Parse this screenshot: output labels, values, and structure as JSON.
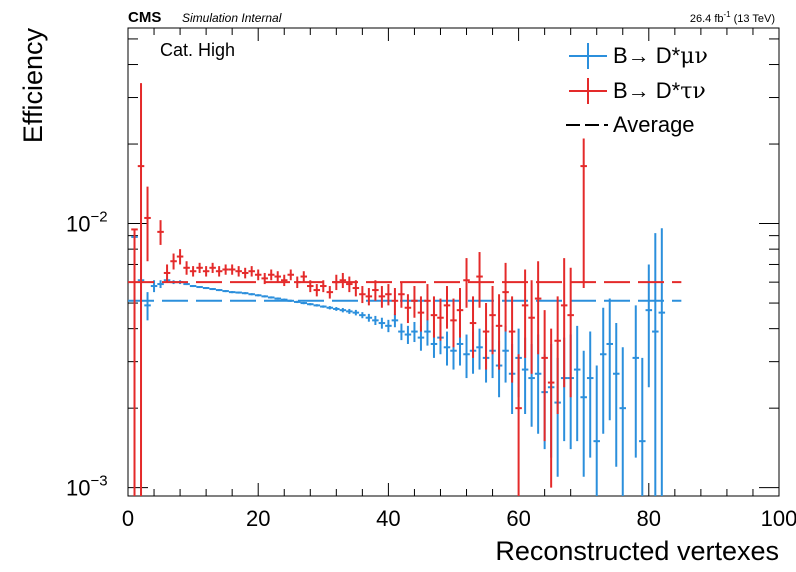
{
  "header": {
    "experiment": "CMS",
    "status": "Simulation Internal",
    "lumi_text": "26.4 fb",
    "lumi_exp": "-1",
    "energy": "(13 TeV)"
  },
  "category_label": "Cat. High",
  "legend": [
    {
      "prefix": "B→ D*",
      "particles": "μν",
      "color": "#2b8fdc"
    },
    {
      "prefix": "B→ D*",
      "particles": "τν",
      "color": "#e42a2a"
    },
    {
      "label": "Average",
      "color": "#000000"
    }
  ],
  "chart_data": {
    "type": "scatter",
    "xlabel": "Reconstructed vertexes",
    "ylabel": "Efficiency",
    "xlim": [
      0,
      100
    ],
    "ylim": [
      0.00093,
      0.055
    ],
    "log_y": true,
    "x_ticks": [
      0,
      20,
      40,
      60,
      80,
      100
    ],
    "y_tick_labels": [
      {
        "value": 0.01,
        "base": "10",
        "exp": "−2"
      },
      {
        "value": 0.001,
        "base": "10",
        "exp": "−3"
      }
    ],
    "series": [
      {
        "name": "B→ D*μν",
        "color": "#2b8fdc",
        "average": 0.0051,
        "average_range": [
          0,
          85
        ],
        "points": [
          [
            1,
            0.0089,
            0.0032,
            0.0085
          ],
          [
            2,
            0.0061,
            0.004,
            0.0075
          ],
          [
            3,
            0.0049,
            0.0043,
            0.0055
          ],
          [
            4,
            0.0058,
            0.0055,
            0.0061
          ],
          [
            5,
            0.0059,
            0.0057,
            0.0061
          ],
          [
            6,
            0.0061,
            0.006,
            0.0062
          ],
          [
            7,
            0.006,
            0.0059,
            0.0061
          ],
          [
            8,
            0.006,
            0.0059,
            0.0061
          ],
          [
            9,
            0.0059,
            0.00585,
            0.00595
          ],
          [
            10,
            0.0058,
            0.00575,
            0.00585
          ],
          [
            11,
            0.00575,
            0.0057,
            0.0058
          ],
          [
            12,
            0.0057,
            0.00565,
            0.00575
          ],
          [
            13,
            0.00565,
            0.0056,
            0.0057
          ],
          [
            14,
            0.0056,
            0.00555,
            0.00565
          ],
          [
            15,
            0.00555,
            0.0055,
            0.0056
          ],
          [
            16,
            0.0055,
            0.00545,
            0.00555
          ],
          [
            17,
            0.00548,
            0.00543,
            0.00553
          ],
          [
            18,
            0.00545,
            0.0054,
            0.0055
          ],
          [
            19,
            0.0054,
            0.00535,
            0.00545
          ],
          [
            20,
            0.00535,
            0.0053,
            0.0054
          ],
          [
            21,
            0.0053,
            0.00525,
            0.00535
          ],
          [
            22,
            0.00525,
            0.0052,
            0.0053
          ],
          [
            23,
            0.0052,
            0.00515,
            0.00525
          ],
          [
            24,
            0.00515,
            0.0051,
            0.0052
          ],
          [
            25,
            0.0051,
            0.00505,
            0.00515
          ],
          [
            26,
            0.00505,
            0.005,
            0.0051
          ],
          [
            27,
            0.005,
            0.00495,
            0.00505
          ],
          [
            28,
            0.00495,
            0.0049,
            0.005
          ],
          [
            29,
            0.0049,
            0.00485,
            0.00495
          ],
          [
            30,
            0.00485,
            0.0048,
            0.0049
          ],
          [
            31,
            0.0048,
            0.00473,
            0.00487
          ],
          [
            32,
            0.00475,
            0.00467,
            0.00483
          ],
          [
            33,
            0.0047,
            0.00461,
            0.00479
          ],
          [
            34,
            0.00465,
            0.00455,
            0.00475
          ],
          [
            35,
            0.0046,
            0.00449,
            0.00471
          ],
          [
            36,
            0.0045,
            0.00438,
            0.00462
          ],
          [
            37,
            0.0044,
            0.00425,
            0.00455
          ],
          [
            38,
            0.0043,
            0.00413,
            0.00447
          ],
          [
            39,
            0.0042,
            0.004,
            0.0044
          ],
          [
            40,
            0.0041,
            0.00388,
            0.00432
          ],
          [
            41,
            0.0043,
            0.00405,
            0.00455
          ],
          [
            42,
            0.0039,
            0.00362,
            0.00418
          ],
          [
            43,
            0.0038,
            0.0035,
            0.0041
          ],
          [
            44,
            0.0039,
            0.00356,
            0.00424
          ],
          [
            45,
            0.0037,
            0.0033,
            0.0041
          ],
          [
            46,
            0.0039,
            0.00345,
            0.00435
          ],
          [
            47,
            0.0035,
            0.0031,
            0.0039
          ],
          [
            48,
            0.0037,
            0.0032,
            0.0042
          ],
          [
            49,
            0.0034,
            0.0029,
            0.0039
          ],
          [
            50,
            0.0033,
            0.0028,
            0.0038
          ],
          [
            51,
            0.0035,
            0.0029,
            0.0041
          ],
          [
            52,
            0.0032,
            0.0026,
            0.0038
          ],
          [
            53,
            0.0033,
            0.0027,
            0.0039
          ],
          [
            54,
            0.0034,
            0.0028,
            0.004
          ],
          [
            55,
            0.0031,
            0.0025,
            0.0037
          ],
          [
            56,
            0.0033,
            0.0026,
            0.0041
          ],
          [
            57,
            0.0029,
            0.0022,
            0.0036
          ],
          [
            58,
            0.0033,
            0.0025,
            0.0041
          ],
          [
            59,
            0.0027,
            0.0019,
            0.0035
          ],
          [
            60,
            0.0031,
            0.0022,
            0.004
          ],
          [
            61,
            0.0028,
            0.0019,
            0.0037
          ],
          [
            62,
            0.0026,
            0.0017,
            0.0035
          ],
          [
            63,
            0.0027,
            0.0016,
            0.0038
          ],
          [
            64,
            0.0023,
            0.0014,
            0.0032
          ],
          [
            65,
            0.0024,
            0.0013,
            0.0035
          ],
          [
            66,
            0.0021,
            0.0011,
            0.0031
          ],
          [
            67,
            0.0026,
            0.0015,
            0.0037
          ],
          [
            68,
            0.0026,
            0.0014,
            0.0038
          ],
          [
            69,
            0.0028,
            0.0015,
            0.0041
          ],
          [
            70,
            0.0022,
            0.0011,
            0.0033
          ],
          [
            71,
            0.0026,
            0.0013,
            0.0039
          ],
          [
            72,
            0.0015,
            0.0005,
            0.0029
          ],
          [
            73,
            0.0032,
            0.0016,
            0.0048
          ],
          [
            74,
            0.0035,
            0.0018,
            0.0052
          ],
          [
            75,
            0.0027,
            0.0012,
            0.0042
          ],
          [
            76,
            0.002,
            0.0008,
            0.0034
          ],
          [
            78,
            0.0031,
            0.0013,
            0.0049
          ],
          [
            79,
            0.0015,
            0.0005,
            0.0031
          ],
          [
            80,
            0.0047,
            0.0024,
            0.007
          ],
          [
            81,
            0.0039,
            0.0005,
            0.0092
          ],
          [
            82,
            0.0046,
            0.0005,
            0.0096
          ]
        ]
      },
      {
        "name": "B→ D*τν",
        "color": "#e42a2a",
        "average": 0.006,
        "average_range": [
          0,
          85
        ],
        "points": [
          [
            1,
            0.0095,
            0.0002,
            0.0095
          ],
          [
            2,
            0.0165,
            0.0005,
            0.034
          ],
          [
            3,
            0.0105,
            0.0072,
            0.0138
          ],
          [
            5,
            0.0093,
            0.0083,
            0.0103
          ],
          [
            6,
            0.0065,
            0.006,
            0.007
          ],
          [
            7,
            0.0072,
            0.0067,
            0.0077
          ],
          [
            8,
            0.0075,
            0.007,
            0.008
          ],
          [
            9,
            0.0068,
            0.0064,
            0.0072
          ],
          [
            10,
            0.0066,
            0.0063,
            0.0069
          ],
          [
            11,
            0.0068,
            0.0065,
            0.0071
          ],
          [
            12,
            0.0066,
            0.0063,
            0.0069
          ],
          [
            13,
            0.0068,
            0.0065,
            0.0071
          ],
          [
            14,
            0.0066,
            0.0063,
            0.0069
          ],
          [
            15,
            0.0067,
            0.0064,
            0.007
          ],
          [
            16,
            0.0067,
            0.0064,
            0.007
          ],
          [
            17,
            0.0066,
            0.0063,
            0.0069
          ],
          [
            18,
            0.0065,
            0.0062,
            0.0068
          ],
          [
            19,
            0.0066,
            0.0063,
            0.0069
          ],
          [
            20,
            0.0064,
            0.0061,
            0.0067
          ],
          [
            21,
            0.0062,
            0.0059,
            0.0065
          ],
          [
            22,
            0.0064,
            0.0061,
            0.0067
          ],
          [
            23,
            0.0063,
            0.006,
            0.0066
          ],
          [
            24,
            0.0061,
            0.0058,
            0.0064
          ],
          [
            25,
            0.0064,
            0.0061,
            0.0067
          ],
          [
            26,
            0.006,
            0.0057,
            0.0063
          ],
          [
            27,
            0.0063,
            0.006,
            0.0066
          ],
          [
            28,
            0.0058,
            0.0055,
            0.0061
          ],
          [
            29,
            0.0056,
            0.0053,
            0.0059
          ],
          [
            30,
            0.0058,
            0.0055,
            0.0061
          ],
          [
            31,
            0.0055,
            0.0052,
            0.0058
          ],
          [
            32,
            0.006,
            0.0056,
            0.0064
          ],
          [
            33,
            0.0061,
            0.0057,
            0.0065
          ],
          [
            34,
            0.0059,
            0.0055,
            0.0063
          ],
          [
            35,
            0.0057,
            0.0053,
            0.0061
          ],
          [
            36,
            0.0054,
            0.005,
            0.0058
          ],
          [
            37,
            0.0053,
            0.0049,
            0.0057
          ],
          [
            38,
            0.0056,
            0.0051,
            0.0061
          ],
          [
            39,
            0.0053,
            0.0048,
            0.0058
          ],
          [
            40,
            0.0054,
            0.0049,
            0.0059
          ],
          [
            41,
            0.0051,
            0.0045,
            0.0057
          ],
          [
            42,
            0.0054,
            0.0048,
            0.006
          ],
          [
            43,
            0.0048,
            0.0042,
            0.0054
          ],
          [
            44,
            0.0051,
            0.0044,
            0.0058
          ],
          [
            45,
            0.0046,
            0.0039,
            0.0053
          ],
          [
            46,
            0.0051,
            0.0043,
            0.0059
          ],
          [
            47,
            0.0045,
            0.0037,
            0.0053
          ],
          [
            48,
            0.0044,
            0.0036,
            0.0052
          ],
          [
            49,
            0.0049,
            0.004,
            0.0058
          ],
          [
            50,
            0.0043,
            0.0034,
            0.0052
          ],
          [
            51,
            0.0047,
            0.0037,
            0.0057
          ],
          [
            52,
            0.0061,
            0.0048,
            0.0074
          ],
          [
            53,
            0.0042,
            0.0031,
            0.0053
          ],
          [
            54,
            0.0063,
            0.0048,
            0.0078
          ],
          [
            55,
            0.0039,
            0.0028,
            0.005
          ],
          [
            56,
            0.0045,
            0.0032,
            0.0058
          ],
          [
            57,
            0.0041,
            0.0028,
            0.0054
          ],
          [
            58,
            0.0055,
            0.0039,
            0.0071
          ],
          [
            59,
            0.0039,
            0.0025,
            0.0053
          ],
          [
            60,
            0.002,
            0.0008,
            0.0032
          ],
          [
            61,
            0.0049,
            0.0031,
            0.0067
          ],
          [
            62,
            0.0044,
            0.0027,
            0.0061
          ],
          [
            63,
            0.0052,
            0.0032,
            0.0072
          ],
          [
            64,
            0.0031,
            0.0015,
            0.0047
          ],
          [
            65,
            0.0025,
            0.001,
            0.004
          ],
          [
            66,
            0.0036,
            0.0019,
            0.0053
          ],
          [
            67,
            0.0049,
            0.0024,
            0.0074
          ],
          [
            68,
            0.0045,
            0.0022,
            0.0068
          ],
          [
            70,
            0.0165,
            0.0057,
            0.021
          ]
        ]
      }
    ]
  }
}
